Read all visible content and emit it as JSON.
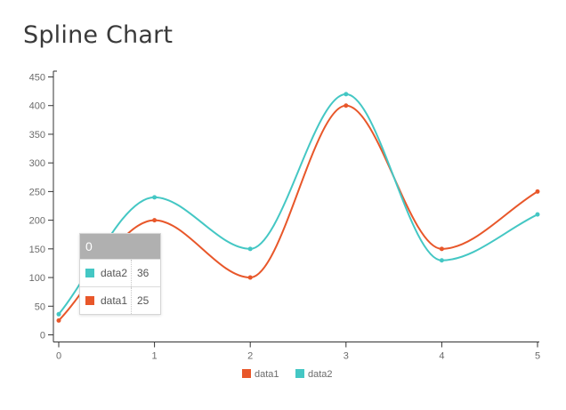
{
  "title": "Spline Chart",
  "colors": {
    "data1": "#e8572a",
    "data2": "#44c7c4"
  },
  "chart_data": {
    "type": "line",
    "smooth": true,
    "x": [
      0,
      1,
      2,
      3,
      4,
      5
    ],
    "series": [
      {
        "name": "data1",
        "values": [
          25,
          200,
          100,
          400,
          150,
          250
        ]
      },
      {
        "name": "data2",
        "values": [
          36,
          240,
          150,
          420,
          130,
          210
        ]
      }
    ],
    "ylim": [
      0,
      450
    ],
    "yticks": [
      0,
      50,
      100,
      150,
      200,
      250,
      300,
      350,
      400,
      450
    ],
    "xticks": [
      0,
      1,
      2,
      3,
      4,
      5
    ],
    "legend": "bottom-center"
  },
  "tooltip": {
    "header": "0",
    "rows": [
      {
        "name": "data2",
        "value": "36"
      },
      {
        "name": "data1",
        "value": "25"
      }
    ]
  }
}
